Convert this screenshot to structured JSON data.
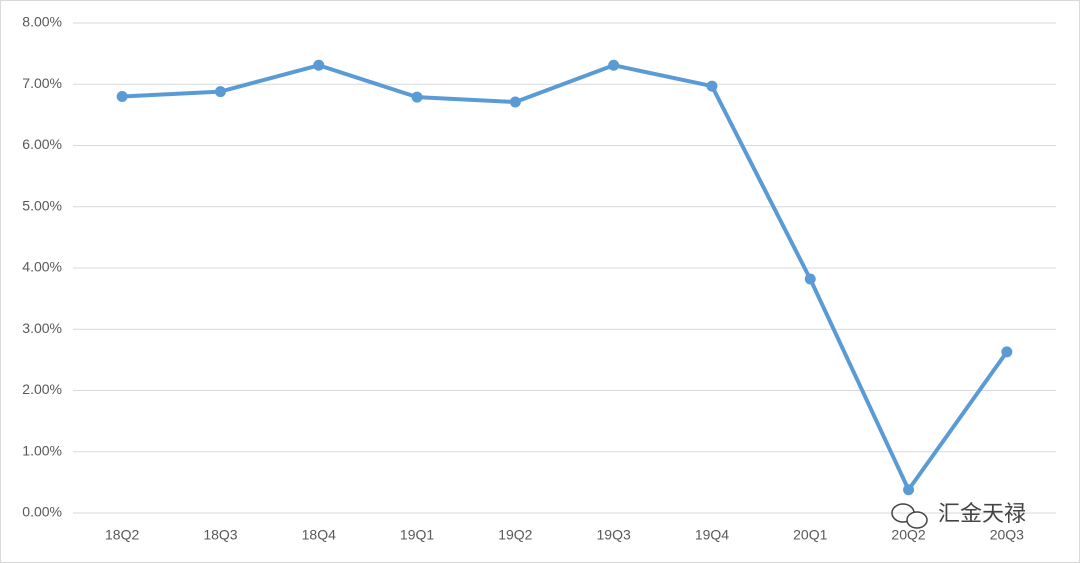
{
  "chart_data": {
    "type": "line",
    "categories": [
      "18Q2",
      "18Q3",
      "18Q4",
      "19Q1",
      "19Q2",
      "19Q3",
      "19Q4",
      "20Q1",
      "20Q2",
      "20Q3"
    ],
    "values": [
      6.8,
      6.88,
      7.31,
      6.79,
      6.71,
      7.31,
      6.97,
      3.82,
      0.38,
      2.63
    ],
    "color": "#5b9bd5",
    "ylim": [
      0,
      8
    ],
    "yticks": [
      {
        "value": 0,
        "label": "0.00%"
      },
      {
        "value": 1,
        "label": "1.00%"
      },
      {
        "value": 2,
        "label": "2.00%"
      },
      {
        "value": 3,
        "label": "3.00%"
      },
      {
        "value": 4,
        "label": "4.00%"
      },
      {
        "value": 5,
        "label": "5.00%"
      },
      {
        "value": 6,
        "label": "6.00%"
      },
      {
        "value": 7,
        "label": "7.00%"
      },
      {
        "value": 8,
        "label": "8.00%"
      }
    ],
    "grid": true,
    "watermark": "汇金天禄"
  }
}
